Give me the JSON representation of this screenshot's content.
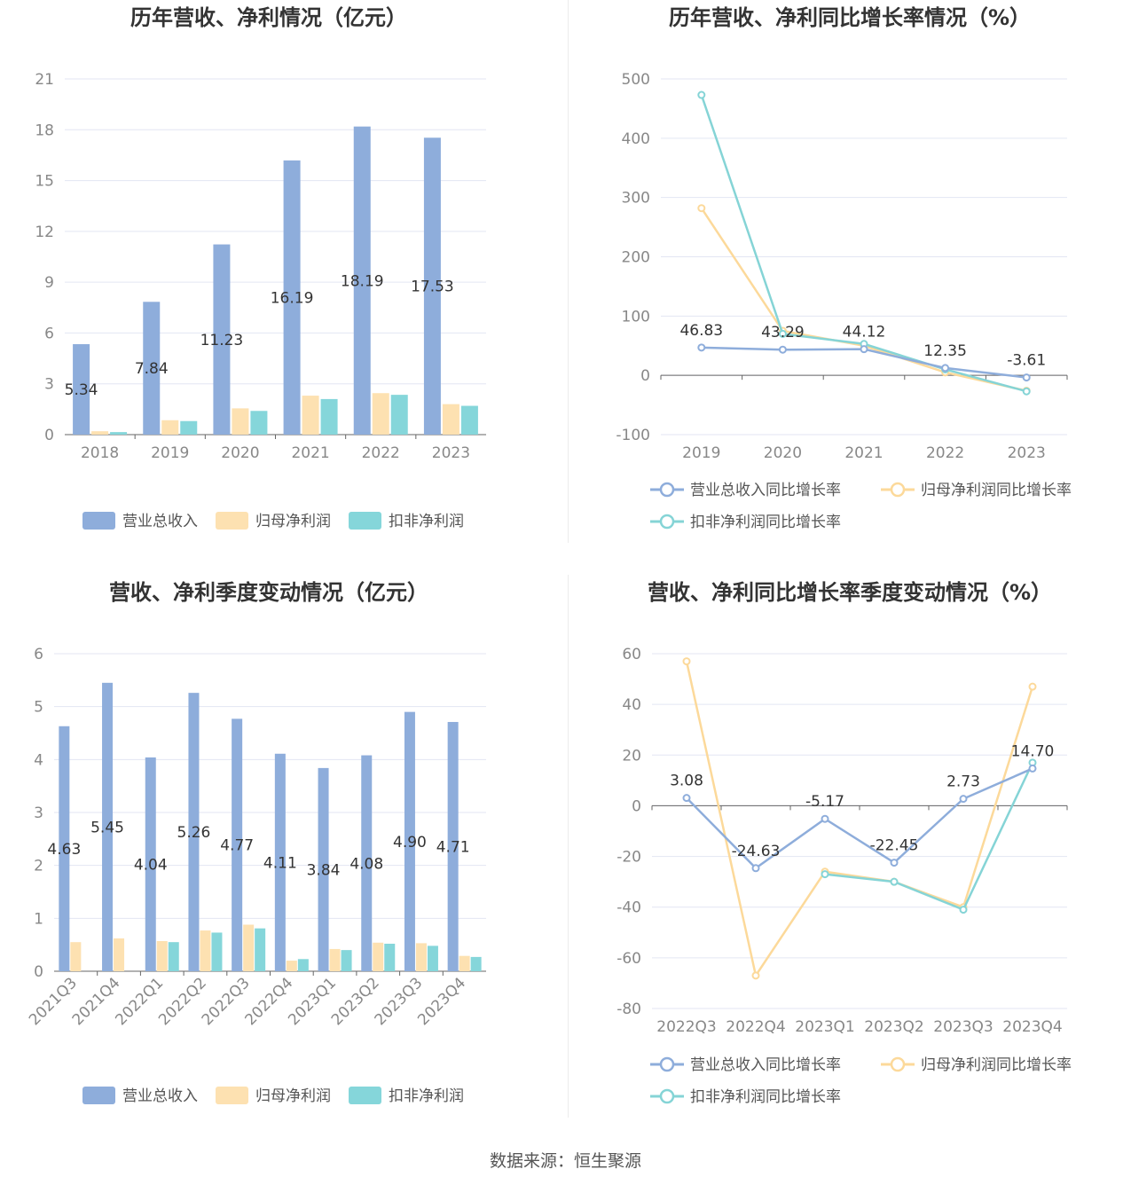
{
  "colors": {
    "revenue": "#8eaddb",
    "parent_profit": "#fde1b1",
    "net_profit_ex": "#85d6da",
    "rev_line": "#8eaddb",
    "parent_line": "#fcd99a",
    "ex_line": "#85d4d6",
    "grid": "#e3e6f3",
    "axis": "#666666"
  },
  "source": "数据来源：恒生聚源",
  "chart_data": [
    {
      "type": "bar",
      "title": "历年营收、净利情况（亿元）",
      "categories": [
        "2018",
        "2019",
        "2020",
        "2021",
        "2022",
        "2023"
      ],
      "series": [
        {
          "name": "营业总收入",
          "values": [
            5.34,
            7.84,
            11.23,
            16.19,
            18.19,
            17.53
          ],
          "labels": [
            "5.34",
            "7.84",
            "11.23",
            "16.19",
            "18.19",
            "17.53"
          ]
        },
        {
          "name": "归母净利润",
          "values": [
            0.2,
            0.85,
            1.55,
            2.3,
            2.45,
            1.8
          ]
        },
        {
          "name": "扣非净利润",
          "values": [
            0.15,
            0.8,
            1.4,
            2.1,
            2.35,
            1.7
          ]
        }
      ],
      "yticks": [
        "0",
        "3",
        "6",
        "9",
        "12",
        "15",
        "18",
        "21"
      ],
      "ylim": [
        0,
        21
      ]
    },
    {
      "type": "line",
      "title": "历年营收、净利同比增长率情况（%）",
      "categories": [
        "2019",
        "2020",
        "2021",
        "2022",
        "2023"
      ],
      "series": [
        {
          "name": "营业总收入同比增长率",
          "values": [
            46.83,
            43.29,
            44.12,
            12.35,
            -3.61
          ],
          "labels": [
            "46.83",
            "43.29",
            "44.12",
            "12.35",
            "-3.61"
          ]
        },
        {
          "name": "归母净利润同比增长率",
          "values": [
            282,
            75,
            50,
            5,
            -26
          ]
        },
        {
          "name": "扣非净利润同比增长率",
          "values": [
            473,
            70,
            53,
            10,
            -27
          ]
        }
      ],
      "yticks": [
        "-100",
        "0",
        "100",
        "200",
        "300",
        "400",
        "500"
      ],
      "ylim": [
        -100,
        500
      ]
    },
    {
      "type": "bar",
      "title": "营收、净利季度变动情况（亿元）",
      "categories": [
        "2021Q3",
        "2021Q4",
        "2022Q1",
        "2022Q2",
        "2022Q3",
        "2022Q4",
        "2023Q1",
        "2023Q2",
        "2023Q3",
        "2023Q4"
      ],
      "series": [
        {
          "name": "营业总收入",
          "values": [
            4.63,
            5.45,
            4.04,
            5.26,
            4.77,
            4.11,
            3.84,
            4.08,
            4.9,
            4.71
          ],
          "labels": [
            "4.63",
            "5.45",
            "4.04",
            "5.26",
            "4.77",
            "4.11",
            "3.84",
            "4.08",
            "4.90",
            "4.71"
          ]
        },
        {
          "name": "归母净利润",
          "values": [
            0.55,
            0.62,
            0.57,
            0.77,
            0.88,
            0.2,
            0.42,
            0.54,
            0.53,
            0.29
          ]
        },
        {
          "name": "扣非净利润",
          "values": [
            null,
            null,
            0.55,
            0.73,
            0.81,
            0.23,
            0.4,
            0.52,
            0.48,
            0.27
          ]
        }
      ],
      "yticks": [
        "0",
        "1",
        "2",
        "3",
        "4",
        "5",
        "6"
      ],
      "ylim": [
        0,
        6
      ]
    },
    {
      "type": "line",
      "title": "营收、净利同比增长率季度变动情况（%）",
      "categories": [
        "2022Q3",
        "2022Q4",
        "2023Q1",
        "2023Q2",
        "2023Q3",
        "2023Q4"
      ],
      "series": [
        {
          "name": "营业总收入同比增长率",
          "values": [
            3.08,
            -24.63,
            -5.17,
            -22.45,
            2.73,
            14.7
          ],
          "labels": [
            "3.08",
            "-24.63",
            "-5.17",
            "-22.45",
            "2.73",
            "14.70"
          ]
        },
        {
          "name": "归母净利润同比增长率",
          "values": [
            57,
            -67,
            -26,
            -30,
            -40,
            47
          ]
        },
        {
          "name": "扣非净利润同比增长率",
          "values": [
            null,
            null,
            -27,
            -30,
            -41,
            17
          ]
        }
      ],
      "yticks": [
        "-80",
        "-60",
        "-40",
        "-20",
        "0",
        "20",
        "40",
        "60"
      ],
      "ylim": [
        -80,
        60
      ]
    }
  ]
}
